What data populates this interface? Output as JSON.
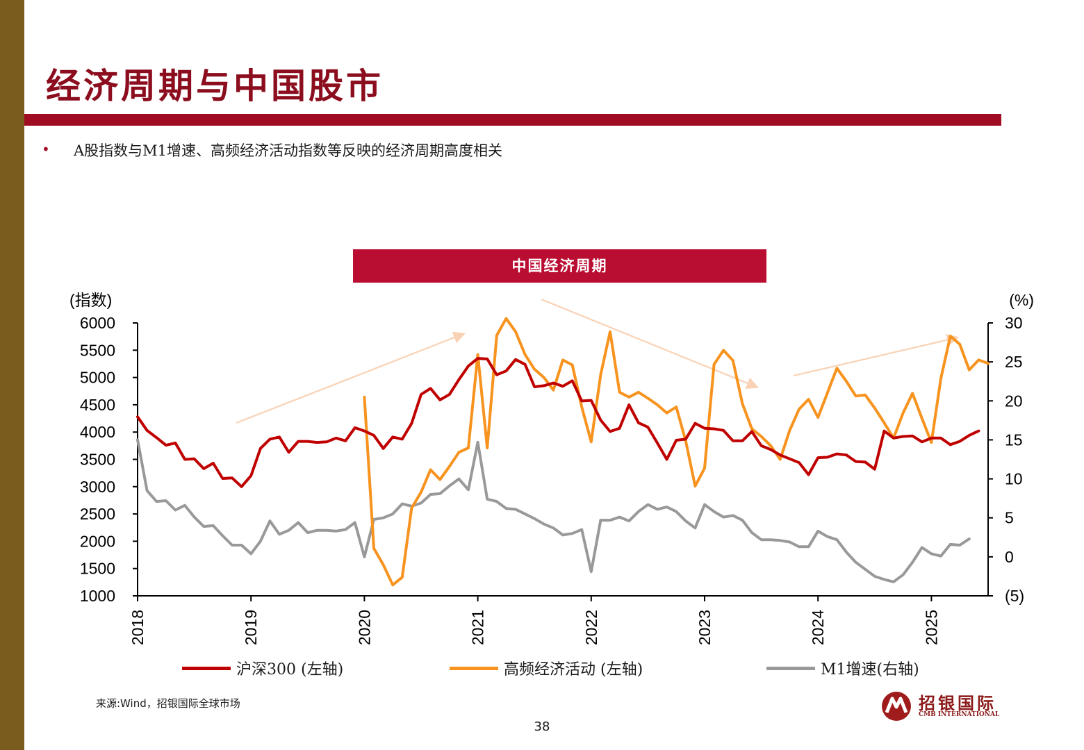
{
  "page": {
    "title": "经济周期与中国股市",
    "bullet": "A股指数与M1增速、高频经济活动指数等反映的经济周期高度相关",
    "source": "来源:Wind，招银国际全球市场",
    "page_number": "38",
    "logo": {
      "name": "招银国际",
      "subtitle": "CMB INTERNATIONAL"
    }
  },
  "colors": {
    "brand": "#a00d22",
    "sidebar": "#7a5c1e",
    "banner": "#b90d32",
    "hs300": "#c00000",
    "activity": "#f7931e",
    "m1": "#999999",
    "arrow": "#f9d2b5",
    "negative_tick": "#e60000"
  },
  "chart_data": {
    "type": "line",
    "title": "中国经济周期",
    "left_axis_label": "(指数)",
    "right_axis_label": "(%)",
    "left_ylim": [
      1000,
      6000
    ],
    "left_ticks": [
      1000,
      1500,
      2000,
      2500,
      3000,
      3500,
      4000,
      4500,
      5000,
      5500,
      6000
    ],
    "right_ylim": [
      -5,
      30
    ],
    "right_ticks": [
      -5,
      0,
      5,
      10,
      15,
      20,
      25,
      30
    ],
    "right_tick_labels": [
      "(5)",
      "0",
      "5",
      "10",
      "15",
      "20",
      "25",
      "30"
    ],
    "x_range": [
      "2018-01",
      "2025-07"
    ],
    "x_ticks": [
      "2018",
      "2019",
      "2020",
      "2021",
      "2022",
      "2023",
      "2024",
      "2025"
    ],
    "legend_position": "bottom",
    "grid": false,
    "trend_arrows": [
      "up",
      "down",
      "up"
    ],
    "series": [
      {
        "name": "沪深300 (左轴)",
        "axis": "left",
        "start": "2018-01",
        "values": [
          4280,
          4030,
          3900,
          3760,
          3800,
          3500,
          3510,
          3330,
          3430,
          3150,
          3160,
          3000,
          3200,
          3700,
          3870,
          3910,
          3630,
          3830,
          3830,
          3810,
          3820,
          3890,
          3840,
          4080,
          4020,
          3940,
          3700,
          3910,
          3870,
          4160,
          4690,
          4800,
          4590,
          4690,
          4960,
          5210,
          5350,
          5340,
          5050,
          5120,
          5330,
          5240,
          4830,
          4850,
          4900,
          4840,
          4940,
          4570,
          4580,
          4220,
          4010,
          4070,
          4500,
          4170,
          4090,
          3800,
          3500,
          3850,
          3870,
          4160,
          4070,
          4060,
          4030,
          3840,
          3840,
          4010,
          3750,
          3680,
          3580,
          3510,
          3440,
          3220,
          3530,
          3540,
          3600,
          3580,
          3460,
          3450,
          3320,
          4020,
          3890,
          3920,
          3930,
          3820,
          3890,
          3890,
          3770,
          3830,
          3940,
          4020
        ]
      },
      {
        "name": "高频经济活动 (左轴)",
        "axis": "left",
        "start": "2020-01",
        "values": [
          4640,
          1870,
          1570,
          1200,
          1340,
          2610,
          2900,
          3310,
          3130,
          3370,
          3630,
          3710,
          5420,
          3710,
          5770,
          6080,
          5840,
          5420,
          5150,
          5000,
          4770,
          5320,
          5230,
          4460,
          3820,
          5050,
          5840,
          4730,
          4640,
          4730,
          4620,
          4500,
          4350,
          4460,
          3840,
          3010,
          3340,
          5240,
          5500,
          5310,
          4520,
          4060,
          3920,
          3750,
          3500,
          4030,
          4420,
          4600,
          4270,
          4720,
          5170,
          4930,
          4660,
          4680,
          4440,
          4170,
          3890,
          4350,
          4710,
          4250,
          3810,
          4980,
          5760,
          5610,
          5140,
          5320,
          5260
        ]
      },
      {
        "name": "M1增速(右轴)",
        "axis": "right",
        "start": "2018-01",
        "values": [
          15.0,
          8.5,
          7.1,
          7.2,
          6.0,
          6.6,
          5.1,
          3.9,
          4.0,
          2.7,
          1.5,
          1.5,
          0.4,
          2.0,
          4.6,
          2.9,
          3.4,
          4.4,
          3.1,
          3.4,
          3.4,
          3.3,
          3.5,
          4.4,
          0.0,
          4.8,
          5.0,
          5.5,
          6.8,
          6.5,
          6.9,
          8.0,
          8.1,
          9.1,
          10.0,
          8.6,
          14.7,
          7.4,
          7.1,
          6.2,
          6.1,
          5.5,
          4.9,
          4.2,
          3.7,
          2.8,
          3.0,
          3.5,
          -1.9,
          4.7,
          4.7,
          5.1,
          4.6,
          5.8,
          6.7,
          6.1,
          6.4,
          5.8,
          4.6,
          3.7,
          6.7,
          5.8,
          5.1,
          5.3,
          4.7,
          3.1,
          2.2,
          2.2,
          2.1,
          1.9,
          1.3,
          1.3,
          3.3,
          2.6,
          2.2,
          0.6,
          -0.7,
          -1.6,
          -2.5,
          -2.9,
          -3.2,
          -2.3,
          -0.7,
          1.2,
          0.4,
          0.1,
          1.6,
          1.5,
          2.3
        ]
      }
    ]
  }
}
